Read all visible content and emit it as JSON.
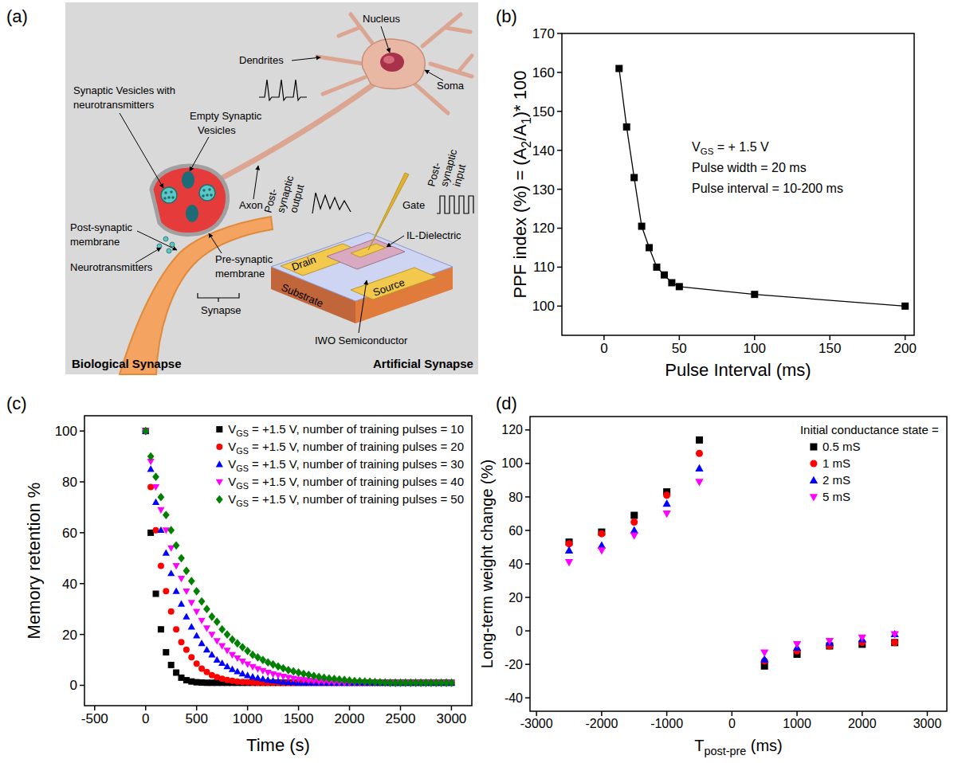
{
  "panel_labels": [
    "(a)",
    "(b)",
    "(c)",
    "(d)"
  ],
  "diagram": {
    "labels": {
      "nucleus": "Nucleus",
      "dendrites": "Dendrites",
      "soma": "Soma",
      "full_vesicles": [
        "Synaptic Vesicles with",
        "neurotransmitters"
      ],
      "empty_vesicles": [
        "Empty Synaptic",
        "Vesicles"
      ],
      "axon": "Axon",
      "output": [
        "Post-",
        "synaptic",
        "output"
      ],
      "input": [
        "Post-",
        "synaptic",
        "input"
      ],
      "gate": "Gate",
      "drain": "Drain",
      "source": "Source",
      "dielectric": "IL-Dielectric",
      "substrate": "Substrate",
      "semiconductor": "IWO Semiconductor",
      "post_membrane": [
        "Post-synaptic",
        "membrane"
      ],
      "neurotransmitters": "Neurotransmitters",
      "pre_membrane": [
        "Pre-synaptic",
        "membrane"
      ],
      "synapse": "Synapse",
      "biological": "Biological Synapse",
      "artificial": "Artificial Synapse"
    }
  },
  "chart_data": [
    {
      "type": "line",
      "x_label": "Pulse Interval (ms)",
      "y_label": "PPF index (%) = (A2/A1)* 100",
      "x": [
        10,
        15,
        20,
        25,
        30,
        35,
        40,
        45,
        50,
        100,
        200
      ],
      "series": [
        {
          "color": "#000000",
          "marker": "square",
          "line_style": "solid",
          "values": [
            161,
            146,
            133,
            120.5,
            115,
            110,
            108,
            106,
            105,
            103,
            100
          ]
        }
      ],
      "xlim": [
        -28,
        206
      ],
      "xticks": [
        0,
        50,
        100,
        150,
        200
      ],
      "ylim": [
        92.5,
        170
      ],
      "yticks": [
        100,
        110,
        120,
        130,
        140,
        150,
        160,
        170
      ],
      "annotations": [
        "VGS = + 1.5 V",
        "Pulse width = 20 ms",
        "Pulse interval = 10-200 ms"
      ],
      "grid": false
    },
    {
      "type": "scatter",
      "x_label": "Time (s)",
      "y_label": "Memory retention %",
      "x": [
        0,
        50,
        100,
        150,
        200,
        250,
        300,
        350,
        400,
        450,
        500,
        550,
        600,
        650,
        700,
        750,
        800,
        850,
        900,
        950,
        1000,
        1050,
        1100,
        1150,
        1200,
        1250,
        1300,
        1350,
        1400,
        1450,
        1500,
        1550,
        1600,
        1650,
        1700,
        1750,
        1800,
        1850,
        1900,
        1950,
        2000,
        2050,
        2100,
        2150,
        2200,
        2250,
        2300,
        2350,
        2400,
        2450,
        2500,
        2550,
        2600,
        2650,
        2700,
        2750,
        2800,
        2850,
        2900,
        2950,
        3000
      ],
      "series": [
        {
          "name": "VGS = +1.5 V, number of training pulses = 10",
          "color": "#000000",
          "marker": "square",
          "values": [
            100,
            60,
            36,
            22,
            13,
            8,
            5,
            3,
            2,
            1.5,
            1.2,
            1.1,
            1,
            1,
            1,
            1,
            1,
            1,
            1,
            1,
            1,
            1,
            1,
            1,
            1,
            1,
            1,
            1,
            1,
            1,
            1,
            1,
            1,
            1,
            1,
            1,
            1,
            1,
            1,
            1,
            1,
            1,
            1,
            1,
            1,
            1,
            1,
            1,
            1,
            1,
            1,
            1,
            1,
            1,
            1,
            1,
            1,
            1,
            1,
            1,
            1
          ]
        },
        {
          "name": "VGS = +1.5 V, number of training pulses = 20",
          "color": "#ff0000",
          "marker": "circle",
          "values": [
            100,
            78,
            61,
            47,
            37,
            29,
            22,
            17,
            14,
            11,
            8.5,
            6.6,
            5.2,
            4,
            3.2,
            2.6,
            2.1,
            1.8,
            1.5,
            1.3,
            1.2,
            1.1,
            1,
            1,
            1,
            1,
            1,
            1,
            1,
            1,
            1,
            1,
            1,
            1,
            1,
            1,
            1,
            1,
            1,
            1,
            1,
            1,
            1,
            1,
            1,
            1,
            1,
            1,
            1,
            1,
            1,
            1,
            1,
            1,
            1,
            1,
            1,
            1,
            1,
            1,
            1
          ]
        },
        {
          "name": "VGS = +1.5 V, number of training pulses = 30",
          "color": "#0000ff",
          "marker": "triangle",
          "values": [
            100,
            85,
            72,
            61,
            52,
            44,
            37,
            32,
            27,
            23,
            19.5,
            16.5,
            14,
            12,
            10,
            8.7,
            7.4,
            6.3,
            5.4,
            4.6,
            3.9,
            3.3,
            2.9,
            2.5,
            2.1,
            1.8,
            1.6,
            1.4,
            1.2,
            1.1,
            1,
            1,
            1,
            1,
            1,
            1,
            1,
            1,
            1,
            1,
            1,
            1,
            1,
            1,
            1,
            1,
            1,
            1,
            1,
            1,
            1,
            1,
            1,
            1,
            1,
            1,
            1,
            1,
            1,
            1,
            1
          ]
        },
        {
          "name": "VGS = +1.5 V, number of training pulses = 40",
          "color": "#ff00ff",
          "marker": "triangle_down",
          "values": [
            100,
            88,
            78,
            69,
            61,
            54,
            47,
            42,
            37,
            32.5,
            29,
            25.5,
            22.5,
            20,
            17.5,
            15.5,
            13.7,
            12,
            10.7,
            9.4,
            8.3,
            7.3,
            6.4,
            5.7,
            5,
            4.4,
            3.9,
            3.5,
            3.1,
            2.7,
            2.4,
            2.1,
            1.9,
            1.7,
            1.5,
            1.4,
            1.3,
            1.2,
            1.1,
            1,
            1,
            1,
            1,
            1,
            1,
            1,
            1,
            1,
            1,
            1,
            1,
            1,
            1,
            1,
            1,
            1,
            1,
            1,
            1,
            1,
            1
          ]
        },
        {
          "name": "VGS = +1.5 V, number of training pulses = 50",
          "color": "#008000",
          "marker": "diamond",
          "values": [
            100,
            90,
            82,
            74,
            67,
            61,
            55,
            50,
            45,
            41,
            37,
            33,
            30,
            27,
            25,
            22,
            20,
            18,
            16.5,
            15,
            13.5,
            12,
            11,
            10,
            9,
            8.2,
            7.4,
            6.7,
            6,
            5.5,
            5,
            4.5,
            4.1,
            3.7,
            3.3,
            3,
            2.7,
            2.5,
            2.3,
            2.1,
            1.9,
            1.7,
            1.6,
            1.5,
            1.4,
            1.3,
            1.2,
            1.1,
            1,
            1,
            1,
            1,
            1,
            1,
            1,
            1,
            1,
            1,
            1,
            1,
            1
          ]
        }
      ],
      "xlim": [
        -600,
        3200
      ],
      "xticks": [
        -500,
        0,
        500,
        1000,
        1500,
        2000,
        2500,
        3000
      ],
      "ylim": [
        -8,
        106
      ],
      "yticks": [
        0,
        20,
        40,
        60,
        80,
        100
      ],
      "legend": "upper right",
      "grid": false
    },
    {
      "type": "scatter",
      "x_label": "Tpost-pre (ms)",
      "y_label": "Long-term weight change (%)",
      "x": [
        -2500,
        -2000,
        -1500,
        -1000,
        -500,
        500,
        1000,
        1500,
        2000,
        2500
      ],
      "legend_title": "Initial conductance state =",
      "series": [
        {
          "name": "0.5 mS",
          "color": "#000000",
          "marker": "square",
          "values": [
            53,
            59,
            69,
            83,
            114,
            -21,
            -14,
            -9,
            -8,
            -7
          ]
        },
        {
          "name": "1 mS",
          "color": "#ff0000",
          "marker": "circle",
          "values": [
            52,
            58,
            65,
            81,
            106,
            -18,
            -12,
            -9,
            -7,
            -7
          ]
        },
        {
          "name": "2 mS",
          "color": "#0000ff",
          "marker": "triangle",
          "values": [
            48,
            51,
            60,
            76,
            97,
            -17,
            -10,
            -7,
            -5,
            -2
          ]
        },
        {
          "name": "5 mS",
          "color": "#ff00ff",
          "marker": "triangle_down",
          "values": [
            41,
            48,
            57,
            70,
            89,
            -13,
            -8,
            -6,
            -4,
            -2
          ]
        }
      ],
      "xlim": [
        -3100,
        3300
      ],
      "xticks": [
        -3000,
        -2000,
        -1000,
        0,
        1000,
        2000,
        3000
      ],
      "ylim": [
        -48,
        128
      ],
      "yticks": [
        -40,
        -20,
        0,
        20,
        40,
        60,
        80,
        100,
        120
      ],
      "legend": "upper right",
      "grid": false
    }
  ]
}
